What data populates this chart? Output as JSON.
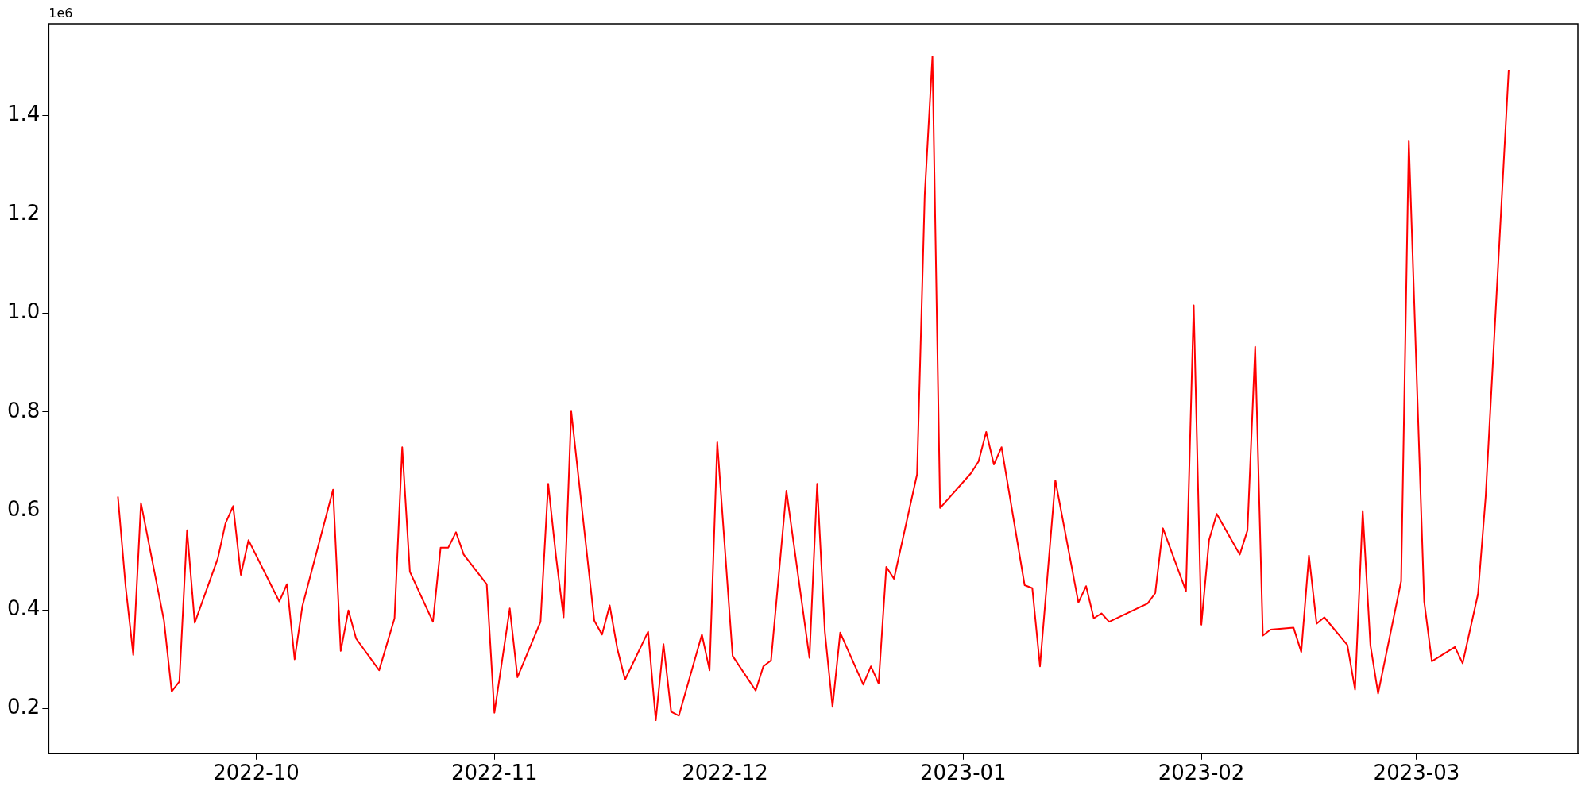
{
  "chart_data": {
    "type": "line",
    "annotations": [
      "1e6"
    ],
    "grid": false,
    "legend": false,
    "marker": "none",
    "line_style": "solid",
    "xlim": [
      "2022-09-04",
      "2023-03-22"
    ],
    "xticks": [
      {
        "value": "2022-10-01",
        "label": "2022-10"
      },
      {
        "value": "2022-11-01",
        "label": "2022-11"
      },
      {
        "value": "2022-12-01",
        "label": "2022-12"
      },
      {
        "value": "2023-01-01",
        "label": "2023-01"
      },
      {
        "value": "2023-02-01",
        "label": "2023-02"
      },
      {
        "value": "2023-03-01",
        "label": "2023-03"
      }
    ],
    "ylim": [
      0.11,
      1.585
    ],
    "yticks": [
      {
        "value": 0.2,
        "label": "0.2"
      },
      {
        "value": 0.4,
        "label": "0.4"
      },
      {
        "value": 0.6,
        "label": "0.6"
      },
      {
        "value": 0.8,
        "label": "0.8"
      },
      {
        "value": 1.0,
        "label": "1.0"
      },
      {
        "value": 1.2,
        "label": "1.2"
      },
      {
        "value": 1.4,
        "label": "1.4"
      }
    ],
    "series": [
      {
        "color": "#ff0000",
        "x": [
          "2022-09-13",
          "2022-09-14",
          "2022-09-15",
          "2022-09-16",
          "2022-09-19",
          "2022-09-20",
          "2022-09-21",
          "2022-09-22",
          "2022-09-23",
          "2022-09-26",
          "2022-09-27",
          "2022-09-28",
          "2022-09-29",
          "2022-09-30",
          "2022-10-04",
          "2022-10-05",
          "2022-10-06",
          "2022-10-07",
          "2022-10-11",
          "2022-10-12",
          "2022-10-13",
          "2022-10-14",
          "2022-10-17",
          "2022-10-19",
          "2022-10-20",
          "2022-10-21",
          "2022-10-24",
          "2022-10-25",
          "2022-10-26",
          "2022-10-27",
          "2022-10-28",
          "2022-10-31",
          "2022-11-01",
          "2022-11-03",
          "2022-11-04",
          "2022-11-07",
          "2022-11-08",
          "2022-11-09",
          "2022-11-10",
          "2022-11-11",
          "2022-11-14",
          "2022-11-15",
          "2022-11-16",
          "2022-11-17",
          "2022-11-18",
          "2022-11-21",
          "2022-11-22",
          "2022-11-23",
          "2022-11-24",
          "2022-11-25",
          "2022-11-28",
          "2022-11-29",
          "2022-11-30",
          "2022-12-02",
          "2022-12-05",
          "2022-12-06",
          "2022-12-07",
          "2022-12-09",
          "2022-12-12",
          "2022-12-13",
          "2022-12-14",
          "2022-12-15",
          "2022-12-16",
          "2022-12-19",
          "2022-12-20",
          "2022-12-21",
          "2022-12-22",
          "2022-12-23",
          "2022-12-26",
          "2022-12-27",
          "2022-12-28",
          "2022-12-29",
          "2023-01-02",
          "2023-01-03",
          "2023-01-04",
          "2023-01-05",
          "2023-01-06",
          "2023-01-09",
          "2023-01-10",
          "2023-01-11",
          "2023-01-13",
          "2023-01-16",
          "2023-01-17",
          "2023-01-18",
          "2023-01-19",
          "2023-01-20",
          "2023-01-25",
          "2023-01-26",
          "2023-01-27",
          "2023-01-30",
          "2023-01-31",
          "2023-02-01",
          "2023-02-02",
          "2023-02-03",
          "2023-02-06",
          "2023-02-07",
          "2023-02-08",
          "2023-02-09",
          "2023-02-10",
          "2023-02-13",
          "2023-02-14",
          "2023-02-15",
          "2023-02-16",
          "2023-02-17",
          "2023-02-20",
          "2023-02-21",
          "2023-02-22",
          "2023-02-23",
          "2023-02-24",
          "2023-02-27",
          "2023-02-28",
          "2023-03-02",
          "2023-03-03",
          "2023-03-06",
          "2023-03-07",
          "2023-03-09",
          "2023-03-10",
          "2023-03-13"
        ],
        "values": [
          0.629,
          0.448,
          0.309,
          0.616,
          0.378,
          0.235,
          0.255,
          0.561,
          0.374,
          0.504,
          0.575,
          0.61,
          0.471,
          0.541,
          0.417,
          0.452,
          0.3,
          0.407,
          0.643,
          0.317,
          0.399,
          0.342,
          0.278,
          0.383,
          0.729,
          0.477,
          0.376,
          0.526,
          0.526,
          0.557,
          0.512,
          0.452,
          0.192,
          0.403,
          0.264,
          0.376,
          0.655,
          0.51,
          0.385,
          0.801,
          0.378,
          0.35,
          0.409,
          0.321,
          0.259,
          0.356,
          0.177,
          0.331,
          0.194,
          0.186,
          0.35,
          0.278,
          0.739,
          0.307,
          0.237,
          0.286,
          0.298,
          0.641,
          0.303,
          0.655,
          0.356,
          0.204,
          0.354,
          0.249,
          0.286,
          0.251,
          0.487,
          0.463,
          0.674,
          1.24,
          1.519,
          0.606,
          0.676,
          0.7,
          0.76,
          0.694,
          0.729,
          0.45,
          0.444,
          0.286,
          0.662,
          0.415,
          0.448,
          0.383,
          0.393,
          0.376,
          0.413,
          0.434,
          0.565,
          0.438,
          1.016,
          0.37,
          0.541,
          0.594,
          0.512,
          0.561,
          0.932,
          0.348,
          0.36,
          0.364,
          0.315,
          0.51,
          0.372,
          0.385,
          0.329,
          0.239,
          0.6,
          0.329,
          0.231,
          0.458,
          1.349,
          0.417,
          0.296,
          0.325,
          0.292,
          0.432,
          0.629,
          1.492
        ]
      }
    ]
  }
}
